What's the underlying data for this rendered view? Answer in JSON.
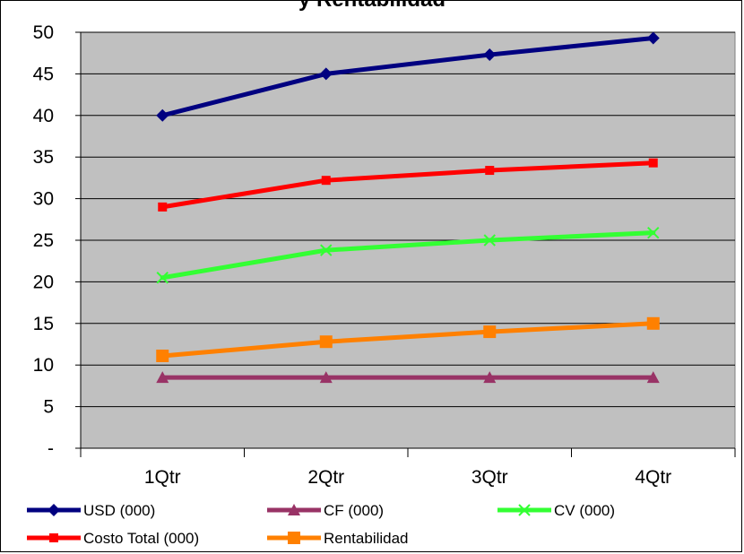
{
  "chart_data": {
    "type": "line",
    "title": "y Rentabilidad",
    "categories": [
      "1Qtr",
      "2Qtr",
      "3Qtr",
      "4Qtr"
    ],
    "ylim": [
      0,
      50
    ],
    "yticks": [
      {
        "value": 0,
        "label": "-"
      },
      {
        "value": 5,
        "label": "5"
      },
      {
        "value": 10,
        "label": "10"
      },
      {
        "value": 15,
        "label": "15"
      },
      {
        "value": 20,
        "label": "20"
      },
      {
        "value": 25,
        "label": "25"
      },
      {
        "value": 30,
        "label": "30"
      },
      {
        "value": 35,
        "label": "35"
      },
      {
        "value": 40,
        "label": "40"
      },
      {
        "value": 45,
        "label": "45"
      },
      {
        "value": 50,
        "label": "50"
      }
    ],
    "grid": true,
    "plot_background": "#c0c0c0",
    "legend_position": "bottom",
    "series": [
      {
        "name": "USD (000)",
        "values": [
          40,
          45,
          47.3,
          49.3
        ],
        "color": "#000080",
        "marker": "diamond"
      },
      {
        "name": "CF (000)",
        "values": [
          8.5,
          8.5,
          8.5,
          8.5
        ],
        "color": "#993366",
        "marker": "triangle"
      },
      {
        "name": "CV (000)",
        "values": [
          20.5,
          23.8,
          25,
          25.9
        ],
        "color": "#33ff33",
        "marker": "x"
      },
      {
        "name": "Costo Total (000)",
        "values": [
          29,
          32.2,
          33.4,
          34.3
        ],
        "color": "#ff0000",
        "marker": "square-small"
      },
      {
        "name": "Rentabilidad",
        "values": [
          11.1,
          12.8,
          14,
          15
        ],
        "color": "#ff8000",
        "marker": "square"
      }
    ]
  }
}
